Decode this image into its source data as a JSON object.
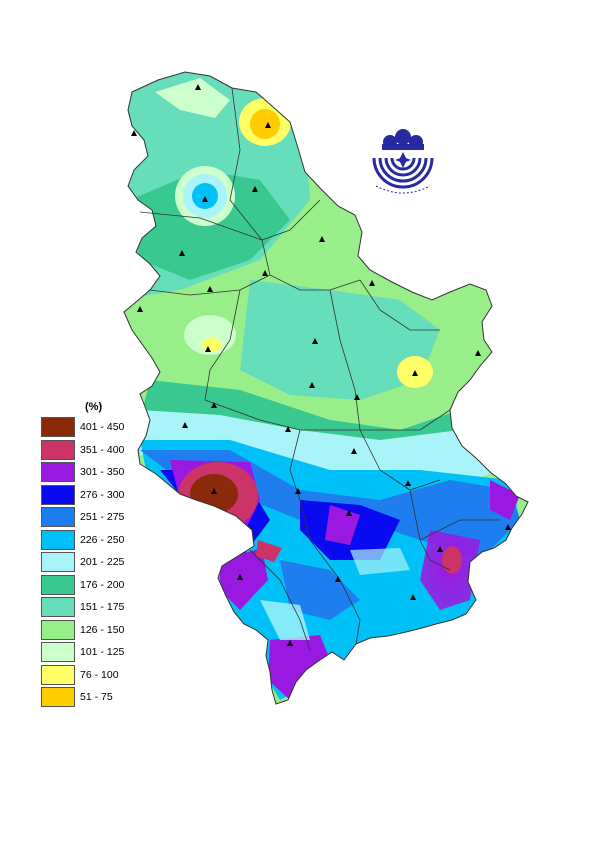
{
  "legend": {
    "unit": "(%)",
    "classes": [
      {
        "label": "401 - 450",
        "color": "#8b2a0a"
      },
      {
        "label": "351 - 400",
        "color": "#cc3366"
      },
      {
        "label": "301 - 350",
        "color": "#9a19e0"
      },
      {
        "label": "276 - 300",
        "color": "#0a0af0"
      },
      {
        "label": "251 - 275",
        "color": "#1e7ef0"
      },
      {
        "label": "226 - 250",
        "color": "#00c0f8"
      },
      {
        "label": "201 - 225",
        "color": "#a8f4f8"
      },
      {
        "label": "176 - 200",
        "color": "#38c890"
      },
      {
        "label": "151 - 175",
        "color": "#66ddbb"
      },
      {
        "label": "126 - 150",
        "color": "#98ee88"
      },
      {
        "label": "101 - 125",
        "color": "#ccffcc"
      },
      {
        "label": "76 - 100",
        "color": "#ffff66"
      },
      {
        "label": "51 - 75",
        "color": "#ffcc00"
      }
    ]
  },
  "map": {
    "region": "Serbia",
    "station_marker_icon": "triangle-icon",
    "logo_icon": "institute-emblem-icon",
    "border_color": "#333333"
  }
}
